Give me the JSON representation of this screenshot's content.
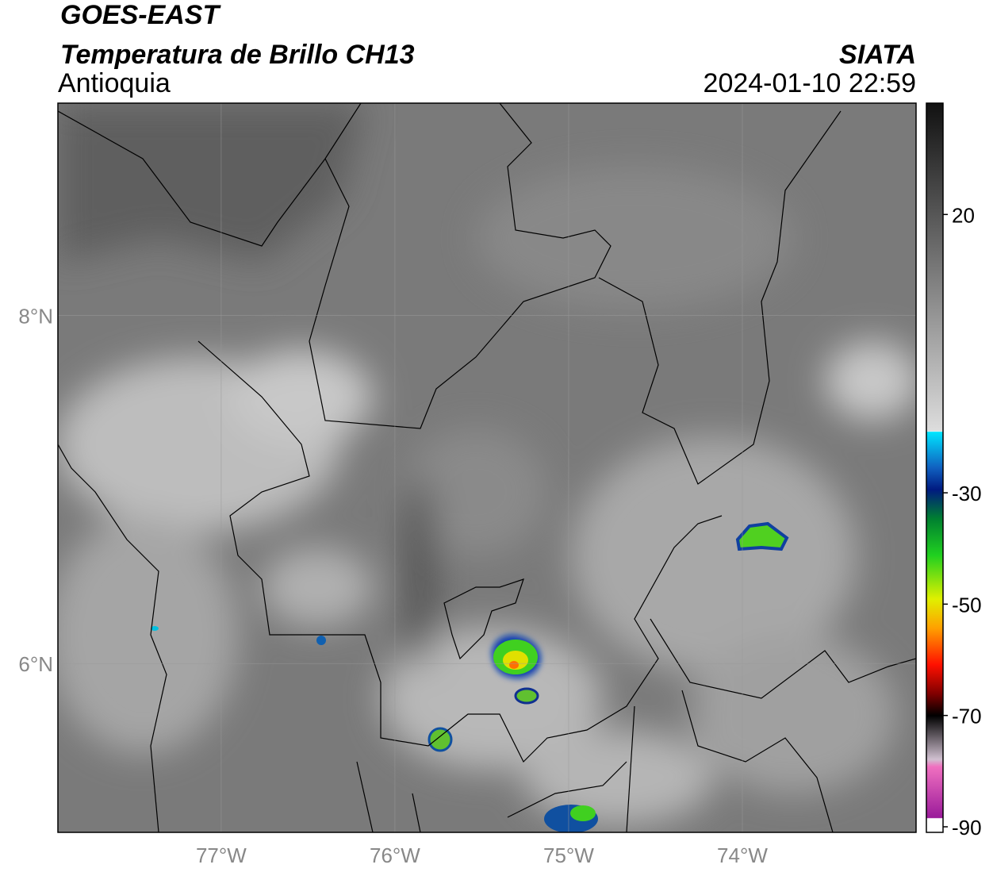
{
  "header": {
    "title": "GOES-EAST",
    "subtitle": "Temperatura de Brillo CH13",
    "region": "Antioquia",
    "source": "SIATA",
    "datetime": "2024-01-10 22:59"
  },
  "map": {
    "lon_range": [
      -77.94,
      -73.0
    ],
    "lat_range": [
      5.03,
      9.22
    ],
    "lon_ticks": [
      {
        "value": -77,
        "label": "77°W"
      },
      {
        "value": -76,
        "label": "76°W"
      },
      {
        "value": -75,
        "label": "75°W"
      },
      {
        "value": -74,
        "label": "74°W"
      }
    ],
    "lat_ticks": [
      {
        "value": 8,
        "label": "8°N"
      },
      {
        "value": 6,
        "label": "6°N"
      }
    ],
    "grid": true
  },
  "colorbar": {
    "range": [
      -91,
      40
    ],
    "ticks": [
      20,
      -30,
      -50,
      -70,
      -90
    ]
  }
}
